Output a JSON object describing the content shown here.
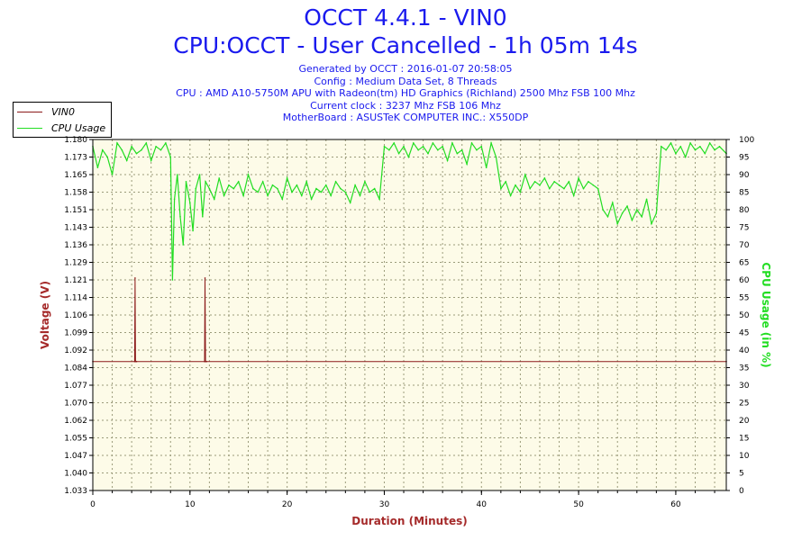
{
  "header": {
    "title": "OCCT 4.4.1 - VIN0",
    "subtitle": "CPU:OCCT - User Cancelled - 1h 05m 14s",
    "info_lines": [
      "Generated by OCCT : 2016-01-07 20:58:05",
      "Config : Medium Data Set, 8 Threads",
      "CPU : AMD A10-5750M APU with Radeon(tm) HD Graphics (Richland) 2500 Mhz FSB 100 Mhz",
      "Current clock : 3237 Mhz FSB 106 Mhz",
      "MotherBoard : ASUSTeK COMPUTER INC.: X550DP"
    ]
  },
  "legend": {
    "placement": "top-left",
    "items": [
      {
        "label": "VIN0",
        "color": "#8b1a1a"
      },
      {
        "label": "CPU Usage",
        "color": "#22dd22"
      }
    ]
  },
  "chart_data": {
    "type": "line",
    "title": "OCCT 4.4.1 - VIN0",
    "xlabel": "Duration (Minutes)",
    "ylabel": "Voltage (V)",
    "y2label": "CPU Usage (in %)",
    "xlim": [
      0,
      65.2
    ],
    "ylim": [
      1.033,
      1.18
    ],
    "y2lim": [
      0,
      100
    ],
    "grid": true,
    "x_ticks": [
      0,
      10,
      20,
      30,
      40,
      50,
      60
    ],
    "y_ticks": [
      "1.033",
      "1.040",
      "1.047",
      "1.055",
      "1.062",
      "1.070",
      "1.077",
      "1.084",
      "1.092",
      "1.099",
      "1.106",
      "1.114",
      "1.121",
      "1.129",
      "1.136",
      "1.143",
      "1.151",
      "1.158",
      "1.165",
      "1.173",
      "1.180"
    ],
    "y2_ticks": [
      0,
      5,
      10,
      15,
      20,
      25,
      30,
      35,
      40,
      45,
      50,
      55,
      60,
      65,
      70,
      75,
      80,
      85,
      90,
      95,
      100
    ],
    "colors": {
      "voltage": "#8b1a1a",
      "cpu": "#22dd22",
      "voltage_axis": "#a52a2a",
      "cpu_axis": "#22dd22",
      "plot_bg": "#fdfbe8",
      "grid": "#9b9b7a"
    },
    "series": [
      {
        "name": "VIN0",
        "axis": "left",
        "x": [
          0,
          4.3,
          4.35,
          4.4,
          4.5,
          11.5,
          11.55,
          11.6,
          11.7,
          65.2
        ],
        "values": [
          1.087,
          1.087,
          1.122,
          1.087,
          1.087,
          1.087,
          1.122,
          1.087,
          1.087,
          1.087
        ]
      },
      {
        "name": "CPU Usage",
        "axis": "right",
        "x": [
          0,
          0.5,
          1,
          1.5,
          2,
          2.5,
          3,
          3.5,
          4,
          4.5,
          5,
          5.5,
          6,
          6.5,
          7,
          7.5,
          8,
          8.2,
          8.4,
          8.7,
          9,
          9.3,
          9.6,
          10,
          10.3,
          10.6,
          11,
          11.3,
          11.6,
          12,
          12.5,
          13,
          13.5,
          14,
          14.5,
          15,
          15.5,
          16,
          16.5,
          17,
          17.5,
          18,
          18.5,
          19,
          19.5,
          20,
          20.5,
          21,
          21.5,
          22,
          22.5,
          23,
          23.5,
          24,
          24.5,
          25,
          25.5,
          26,
          26.5,
          27,
          27.5,
          28,
          28.5,
          29,
          29.5,
          30,
          30.5,
          31,
          31.5,
          32,
          32.5,
          33,
          33.5,
          34,
          34.5,
          35,
          35.5,
          36,
          36.5,
          37,
          37.5,
          38,
          38.5,
          39,
          39.5,
          40,
          40.5,
          41,
          41.5,
          42,
          42.5,
          43,
          43.5,
          44,
          44.5,
          45,
          45.5,
          46,
          46.5,
          47,
          47.5,
          48,
          48.5,
          49,
          49.5,
          50,
          50.5,
          51,
          51.5,
          52,
          52.5,
          53,
          53.5,
          54,
          54.5,
          55,
          55.5,
          56,
          56.5,
          57,
          57.5,
          58,
          58.5,
          59,
          59.5,
          60,
          60.5,
          61,
          61.5,
          62,
          62.5,
          63,
          63.5,
          64,
          64.5,
          65.2
        ],
        "values": [
          98,
          92,
          97,
          95,
          90,
          99,
          97,
          94,
          98,
          96,
          97,
          99,
          94,
          98,
          97,
          99,
          95,
          60,
          83,
          90,
          78,
          70,
          88,
          82,
          74,
          86,
          90,
          78,
          88,
          86,
          83,
          89,
          84,
          87,
          86,
          88,
          84,
          90,
          86,
          85,
          88,
          84,
          87,
          86,
          83,
          89,
          85,
          87,
          84,
          88,
          83,
          86,
          85,
          87,
          84,
          88,
          86,
          85,
          82,
          87,
          84,
          88,
          85,
          86,
          83,
          98,
          97,
          99,
          96,
          98,
          95,
          99,
          97,
          98,
          96,
          99,
          97,
          98,
          94,
          99,
          96,
          97,
          93,
          99,
          97,
          98,
          92,
          99,
          95,
          86,
          88,
          84,
          87,
          85,
          90,
          86,
          88,
          87,
          89,
          86,
          88,
          87,
          86,
          88,
          84,
          89,
          86,
          88,
          87,
          86,
          80,
          78,
          82,
          76,
          79,
          81,
          77,
          80,
          78,
          83,
          76,
          79,
          98,
          97,
          99,
          96,
          98,
          95,
          99,
          97,
          98,
          96,
          99,
          97,
          98,
          96
        ]
      }
    ]
  }
}
